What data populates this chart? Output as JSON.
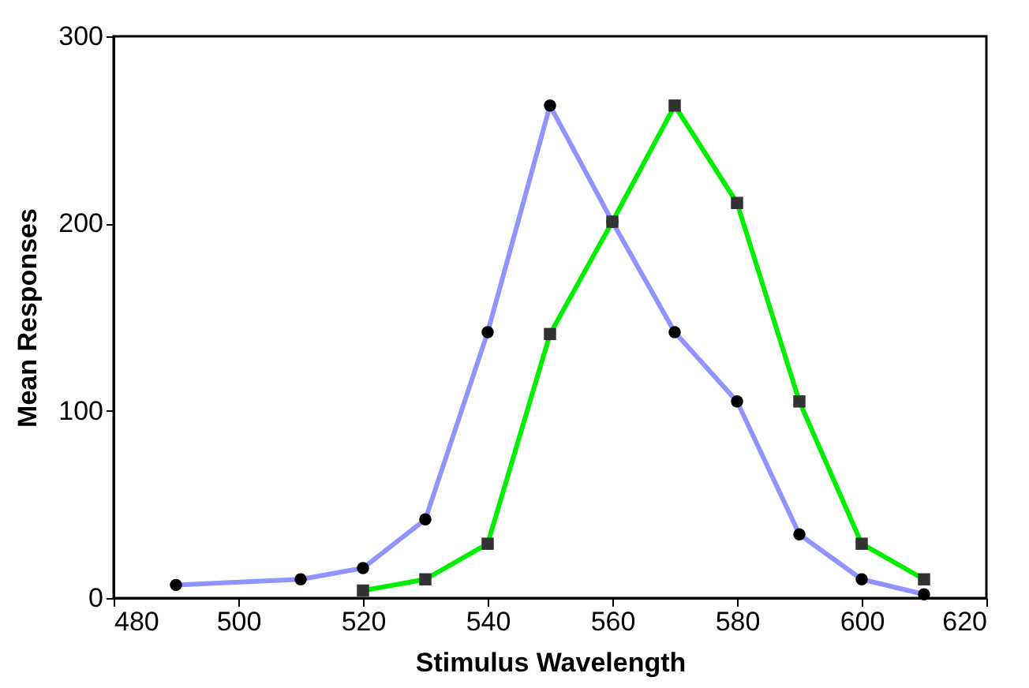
{
  "chart_data": {
    "type": "line",
    "xlabel": "Stimulus Wavelength",
    "ylabel": "Mean Responses",
    "xlim": [
      480,
      620
    ],
    "xticks": [
      480,
      500,
      520,
      540,
      560,
      580,
      600,
      620
    ],
    "ylim": [
      0,
      300
    ],
    "yticks": [
      0,
      100,
      200,
      300
    ],
    "grid": false,
    "legend": false,
    "series": [
      {
        "color": "#8f94ff",
        "marker": "circle",
        "x": [
          490,
          510,
          520,
          530,
          540,
          550,
          560,
          570,
          580,
          590,
          600,
          610
        ],
        "values": [
          7,
          10,
          16,
          42,
          142,
          263,
          201,
          142,
          105,
          34,
          10,
          2
        ]
      },
      {
        "color": "#00ee00",
        "marker": "square",
        "x": [
          520,
          530,
          540,
          550,
          560,
          570,
          580,
          590,
          600,
          610
        ],
        "values": [
          4,
          10,
          29,
          141,
          201,
          263,
          211,
          105,
          29,
          10
        ]
      }
    ]
  }
}
